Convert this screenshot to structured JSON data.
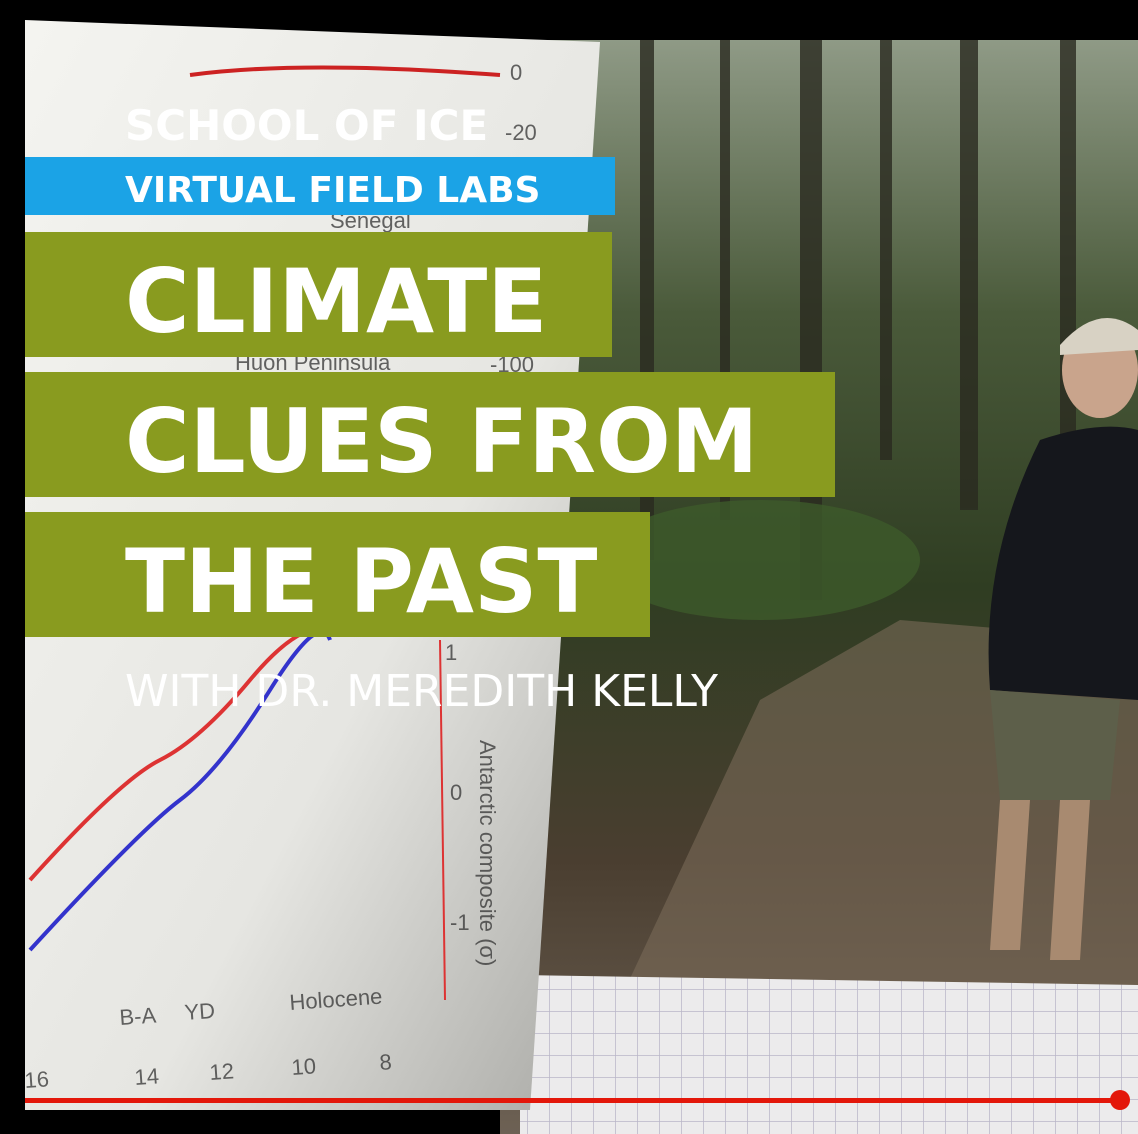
{
  "overlay": {
    "series_name": "SCHOOL OF ICE",
    "series_tag": "VIRTUAL FIELD LABS",
    "title_lines": [
      "CLIMATE",
      "CLUES FROM",
      "THE PAST"
    ],
    "byline": "WITH DR. MEREDITH KELLY"
  },
  "background_figure": {
    "labels": [
      "0",
      "-20",
      "Senegal",
      "Huon Peninsula",
      "-100",
      "1",
      "0",
      "-1",
      "Antarctic composite (σ)",
      "B-A",
      "YD",
      "Holocene",
      "16",
      "14",
      "12",
      "10",
      "8"
    ]
  }
}
